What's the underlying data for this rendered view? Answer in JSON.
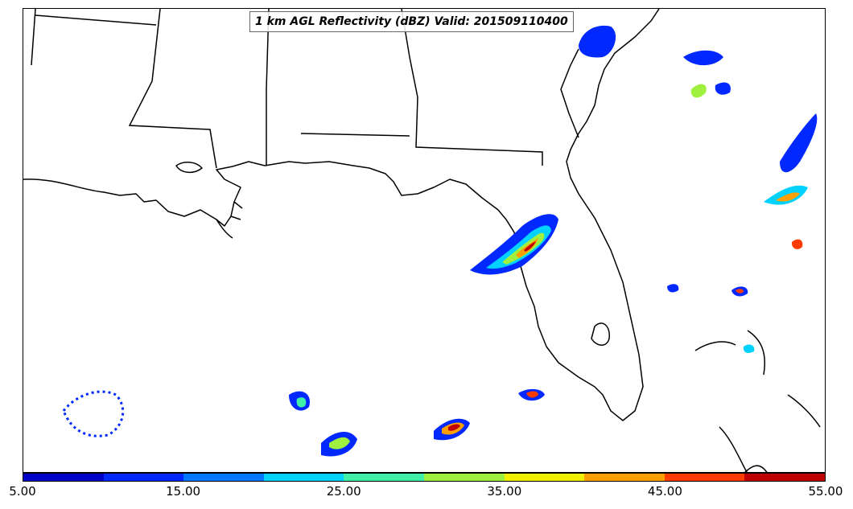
{
  "title": "1 km AGL Reflectivity (dBZ) Valid: 201509110400",
  "colorbar": {
    "colors": [
      "#0000c8",
      "#0028ff",
      "#0078ff",
      "#00d2ff",
      "#40f0a8",
      "#a0f040",
      "#f0f000",
      "#ffa000",
      "#ff3c00",
      "#c00000"
    ],
    "ticks": [
      "5.00",
      "15.00",
      "25.00",
      "35.00",
      "45.00",
      "55.00"
    ]
  }
}
